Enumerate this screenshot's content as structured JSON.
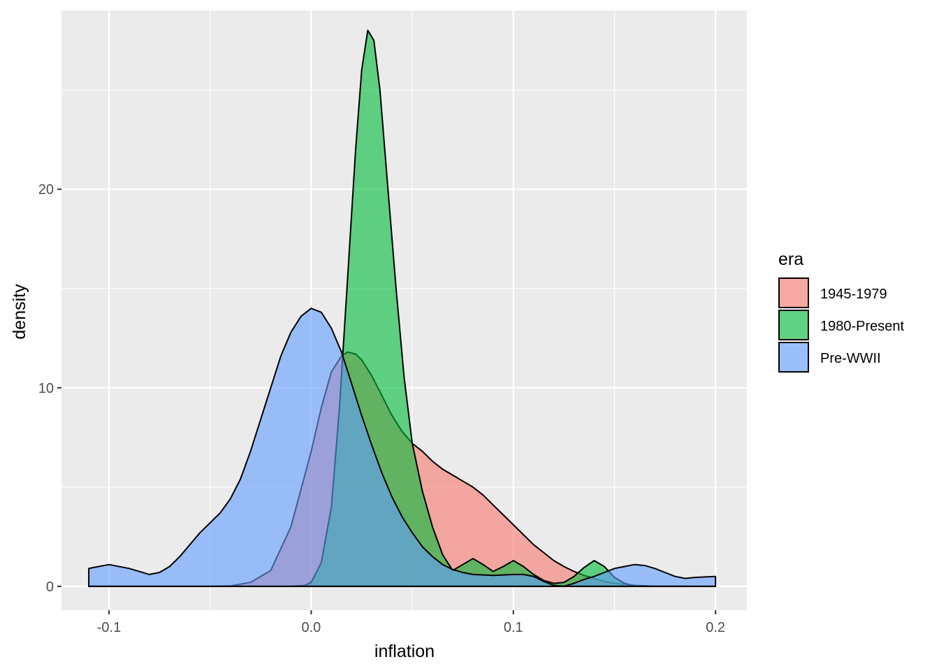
{
  "chart_data": {
    "type": "area",
    "title": "",
    "xlabel": "inflation",
    "ylabel": "density",
    "xlim": [
      -0.1235,
      0.2155
    ],
    "ylim": [
      -1.2,
      29.0
    ],
    "x_ticks": [
      -0.1,
      0.0,
      0.1,
      0.2
    ],
    "x_tick_labels": [
      "-0.1",
      "0.0",
      "0.1",
      "0.2"
    ],
    "y_ticks": [
      0,
      10,
      20
    ],
    "y_tick_labels": [
      "0",
      "10",
      "20"
    ],
    "x_minor": [
      -0.05,
      0.05,
      0.15
    ],
    "y_minor": [
      5,
      15,
      25
    ],
    "grid": true,
    "legend": {
      "title": "era",
      "placement": "right"
    },
    "series": [
      {
        "name": "1945-1979",
        "color": "#F8766D",
        "points": [
          [
            -0.11,
            0
          ],
          [
            -0.05,
            0
          ],
          [
            -0.04,
            0.02
          ],
          [
            -0.03,
            0.2
          ],
          [
            -0.02,
            0.8
          ],
          [
            -0.01,
            3.0
          ],
          [
            0.0,
            6.8
          ],
          [
            0.005,
            9.0
          ],
          [
            0.01,
            10.8
          ],
          [
            0.015,
            11.6
          ],
          [
            0.018,
            11.8
          ],
          [
            0.022,
            11.7
          ],
          [
            0.025,
            11.4
          ],
          [
            0.03,
            10.6
          ],
          [
            0.035,
            9.6
          ],
          [
            0.04,
            8.6
          ],
          [
            0.045,
            7.8
          ],
          [
            0.05,
            7.2
          ],
          [
            0.055,
            6.8
          ],
          [
            0.06,
            6.3
          ],
          [
            0.065,
            5.9
          ],
          [
            0.07,
            5.6
          ],
          [
            0.075,
            5.3
          ],
          [
            0.08,
            5.0
          ],
          [
            0.085,
            4.6
          ],
          [
            0.09,
            4.1
          ],
          [
            0.095,
            3.6
          ],
          [
            0.1,
            3.1
          ],
          [
            0.105,
            2.6
          ],
          [
            0.11,
            2.1
          ],
          [
            0.115,
            1.7
          ],
          [
            0.12,
            1.3
          ],
          [
            0.125,
            1.0
          ],
          [
            0.13,
            0.75
          ],
          [
            0.135,
            0.55
          ],
          [
            0.14,
            0.4
          ],
          [
            0.145,
            0.25
          ],
          [
            0.15,
            0.15
          ],
          [
            0.16,
            0.05
          ],
          [
            0.17,
            0.01
          ],
          [
            0.2,
            0
          ]
        ]
      },
      {
        "name": "1980-Present",
        "color": "#00BA38",
        "points": [
          [
            -0.11,
            0
          ],
          [
            -0.01,
            0
          ],
          [
            -0.003,
            0.05
          ],
          [
            0.0,
            0.2
          ],
          [
            0.005,
            1.2
          ],
          [
            0.01,
            4.0
          ],
          [
            0.014,
            9.0
          ],
          [
            0.018,
            15.5
          ],
          [
            0.022,
            22.0
          ],
          [
            0.025,
            26.0
          ],
          [
            0.028,
            28.0
          ],
          [
            0.031,
            27.5
          ],
          [
            0.034,
            25.0
          ],
          [
            0.038,
            20.0
          ],
          [
            0.042,
            15.0
          ],
          [
            0.046,
            10.5
          ],
          [
            0.05,
            7.2
          ],
          [
            0.055,
            4.8
          ],
          [
            0.06,
            3.0
          ],
          [
            0.065,
            1.6
          ],
          [
            0.07,
            0.8
          ],
          [
            0.075,
            1.1
          ],
          [
            0.08,
            1.4
          ],
          [
            0.085,
            1.1
          ],
          [
            0.09,
            0.75
          ],
          [
            0.095,
            1.0
          ],
          [
            0.1,
            1.3
          ],
          [
            0.105,
            1.0
          ],
          [
            0.11,
            0.6
          ],
          [
            0.115,
            0.3
          ],
          [
            0.12,
            0.15
          ],
          [
            0.125,
            0.2
          ],
          [
            0.13,
            0.5
          ],
          [
            0.135,
            0.95
          ],
          [
            0.14,
            1.3
          ],
          [
            0.145,
            1.0
          ],
          [
            0.15,
            0.45
          ],
          [
            0.155,
            0.15
          ],
          [
            0.16,
            0.03
          ],
          [
            0.165,
            0
          ],
          [
            0.2,
            0
          ]
        ]
      },
      {
        "name": "Pre-WWII",
        "color": "#619CFF",
        "points": [
          [
            -0.11,
            0.9
          ],
          [
            -0.1,
            1.1
          ],
          [
            -0.09,
            0.9
          ],
          [
            -0.08,
            0.6
          ],
          [
            -0.075,
            0.7
          ],
          [
            -0.07,
            1.0
          ],
          [
            -0.065,
            1.5
          ],
          [
            -0.06,
            2.1
          ],
          [
            -0.055,
            2.7
          ],
          [
            -0.05,
            3.2
          ],
          [
            -0.045,
            3.7
          ],
          [
            -0.04,
            4.4
          ],
          [
            -0.035,
            5.4
          ],
          [
            -0.03,
            6.8
          ],
          [
            -0.025,
            8.4
          ],
          [
            -0.02,
            10.0
          ],
          [
            -0.015,
            11.6
          ],
          [
            -0.01,
            12.8
          ],
          [
            -0.005,
            13.6
          ],
          [
            0.0,
            14.0
          ],
          [
            0.005,
            13.8
          ],
          [
            0.01,
            13.0
          ],
          [
            0.015,
            11.8
          ],
          [
            0.02,
            10.2
          ],
          [
            0.025,
            8.6
          ],
          [
            0.03,
            7.1
          ],
          [
            0.035,
            5.7
          ],
          [
            0.04,
            4.5
          ],
          [
            0.045,
            3.5
          ],
          [
            0.05,
            2.7
          ],
          [
            0.055,
            2.0
          ],
          [
            0.06,
            1.5
          ],
          [
            0.065,
            1.1
          ],
          [
            0.07,
            0.85
          ],
          [
            0.075,
            0.7
          ],
          [
            0.08,
            0.6
          ],
          [
            0.09,
            0.55
          ],
          [
            0.1,
            0.6
          ],
          [
            0.105,
            0.6
          ],
          [
            0.11,
            0.5
          ],
          [
            0.115,
            0.25
          ],
          [
            0.12,
            0.05
          ],
          [
            0.125,
            0.0
          ],
          [
            0.13,
            0.15
          ],
          [
            0.135,
            0.35
          ],
          [
            0.14,
            0.5
          ],
          [
            0.145,
            0.7
          ],
          [
            0.15,
            0.9
          ],
          [
            0.155,
            1.0
          ],
          [
            0.16,
            1.1
          ],
          [
            0.165,
            1.05
          ],
          [
            0.17,
            0.9
          ],
          [
            0.175,
            0.7
          ],
          [
            0.18,
            0.5
          ],
          [
            0.185,
            0.4
          ],
          [
            0.19,
            0.45
          ],
          [
            0.2,
            0.5
          ]
        ]
      }
    ]
  }
}
